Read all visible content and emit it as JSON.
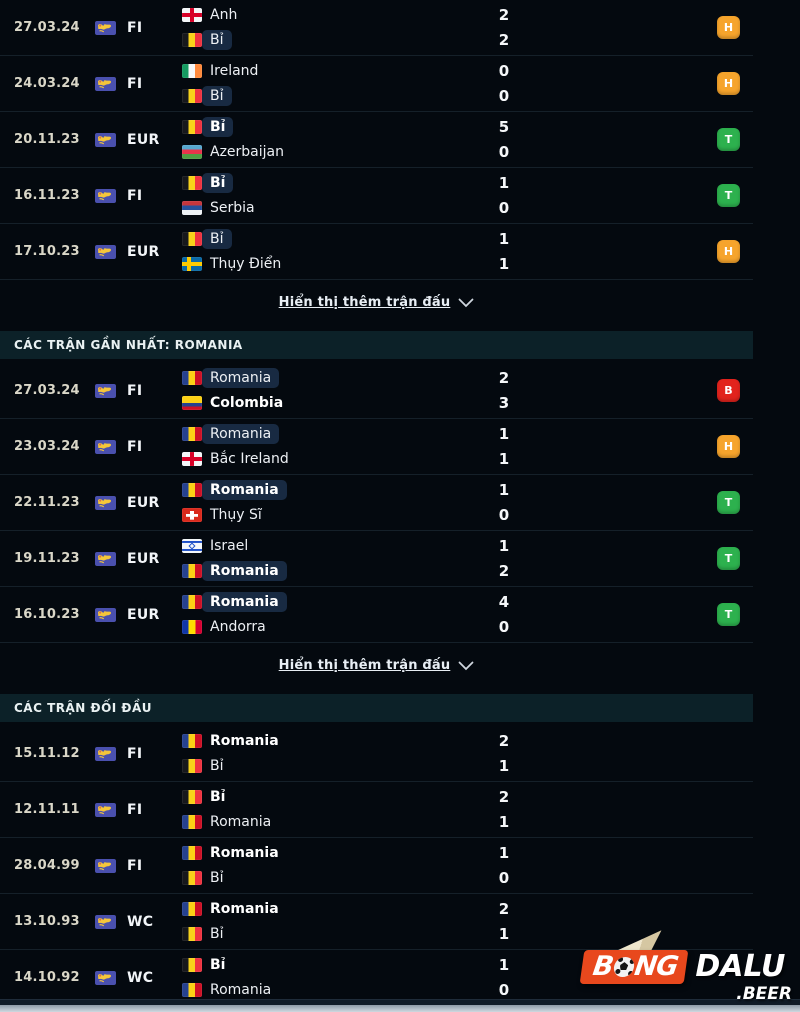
{
  "colors": {
    "background": "#04090f",
    "section_header_bg": "#0c2128",
    "team_chip_bg": "#182a42",
    "badge_win": "#2db14e",
    "badge_draw": "#f6a42c",
    "badge_loss": "#e2231d",
    "date_text": "#dad7c8",
    "logo_orange": "#e8481d"
  },
  "result_letters": {
    "win": "T",
    "draw": "H",
    "loss": "B"
  },
  "show_more_label": "Hiển thị thêm trận đấu",
  "sections": [
    {
      "id": "belgium-recent",
      "header": null,
      "show_more": true,
      "matches": [
        {
          "date": "27.03.24",
          "league": "FI",
          "home": {
            "name": "Anh",
            "flag": "england",
            "chip": false,
            "bold": false
          },
          "away": {
            "name": "Bỉ",
            "flag": "belgium",
            "chip": true,
            "bold": false
          },
          "score": [
            "2",
            "2"
          ],
          "result": "H"
        },
        {
          "date": "24.03.24",
          "league": "FI",
          "home": {
            "name": "Ireland",
            "flag": "ireland",
            "chip": false,
            "bold": false
          },
          "away": {
            "name": "Bỉ",
            "flag": "belgium",
            "chip": true,
            "bold": false
          },
          "score": [
            "0",
            "0"
          ],
          "result": "H"
        },
        {
          "date": "20.11.23",
          "league": "EUR",
          "home": {
            "name": "Bỉ",
            "flag": "belgium",
            "chip": true,
            "bold": true
          },
          "away": {
            "name": "Azerbaijan",
            "flag": "azerbaijan",
            "chip": false,
            "bold": false
          },
          "score": [
            "5",
            "0"
          ],
          "result": "T"
        },
        {
          "date": "16.11.23",
          "league": "FI",
          "home": {
            "name": "Bỉ",
            "flag": "belgium",
            "chip": true,
            "bold": true
          },
          "away": {
            "name": "Serbia",
            "flag": "serbia",
            "chip": false,
            "bold": false
          },
          "score": [
            "1",
            "0"
          ],
          "result": "T"
        },
        {
          "date": "17.10.23",
          "league": "EUR",
          "home": {
            "name": "Bỉ",
            "flag": "belgium",
            "chip": true,
            "bold": false
          },
          "away": {
            "name": "Thụy Điển",
            "flag": "sweden",
            "chip": false,
            "bold": false
          },
          "score": [
            "1",
            "1"
          ],
          "result": "H"
        }
      ]
    },
    {
      "id": "romania-recent",
      "header": "CÁC TRẬN GẦN NHẤT: ROMANIA",
      "show_more": true,
      "matches": [
        {
          "date": "27.03.24",
          "league": "FI",
          "home": {
            "name": "Romania",
            "flag": "romania",
            "chip": true,
            "bold": false
          },
          "away": {
            "name": "Colombia",
            "flag": "colombia",
            "chip": false,
            "bold": true
          },
          "score": [
            "2",
            "3"
          ],
          "result": "B"
        },
        {
          "date": "23.03.24",
          "league": "FI",
          "home": {
            "name": "Romania",
            "flag": "romania",
            "chip": true,
            "bold": false
          },
          "away": {
            "name": "Bắc Ireland",
            "flag": "northern-ireland",
            "chip": false,
            "bold": false
          },
          "score": [
            "1",
            "1"
          ],
          "result": "H"
        },
        {
          "date": "22.11.23",
          "league": "EUR",
          "home": {
            "name": "Romania",
            "flag": "romania",
            "chip": true,
            "bold": true
          },
          "away": {
            "name": "Thụy Sĩ",
            "flag": "switzerland",
            "chip": false,
            "bold": false
          },
          "score": [
            "1",
            "0"
          ],
          "result": "T"
        },
        {
          "date": "19.11.23",
          "league": "EUR",
          "home": {
            "name": "Israel",
            "flag": "israel",
            "chip": false,
            "bold": false
          },
          "away": {
            "name": "Romania",
            "flag": "romania",
            "chip": true,
            "bold": true
          },
          "score": [
            "1",
            "2"
          ],
          "result": "T"
        },
        {
          "date": "16.10.23",
          "league": "EUR",
          "home": {
            "name": "Romania",
            "flag": "romania",
            "chip": true,
            "bold": true
          },
          "away": {
            "name": "Andorra",
            "flag": "andorra",
            "chip": false,
            "bold": false
          },
          "score": [
            "4",
            "0"
          ],
          "result": "T"
        }
      ]
    },
    {
      "id": "head-to-head",
      "header": "CÁC TRẬN ĐỐI ĐẦU",
      "show_more": false,
      "matches": [
        {
          "date": "15.11.12",
          "league": "FI",
          "home": {
            "name": "Romania",
            "flag": "romania",
            "chip": false,
            "bold": true
          },
          "away": {
            "name": "Bỉ",
            "flag": "belgium",
            "chip": false,
            "bold": false
          },
          "score": [
            "2",
            "1"
          ],
          "result": null
        },
        {
          "date": "12.11.11",
          "league": "FI",
          "home": {
            "name": "Bỉ",
            "flag": "belgium",
            "chip": false,
            "bold": true
          },
          "away": {
            "name": "Romania",
            "flag": "romania",
            "chip": false,
            "bold": false
          },
          "score": [
            "2",
            "1"
          ],
          "result": null
        },
        {
          "date": "28.04.99",
          "league": "FI",
          "home": {
            "name": "Romania",
            "flag": "romania",
            "chip": false,
            "bold": true
          },
          "away": {
            "name": "Bỉ",
            "flag": "belgium",
            "chip": false,
            "bold": false
          },
          "score": [
            "1",
            "0"
          ],
          "result": null
        },
        {
          "date": "13.10.93",
          "league": "WC",
          "home": {
            "name": "Romania",
            "flag": "romania",
            "chip": false,
            "bold": true
          },
          "away": {
            "name": "Bỉ",
            "flag": "belgium",
            "chip": false,
            "bold": false
          },
          "score": [
            "2",
            "1"
          ],
          "result": null
        },
        {
          "date": "14.10.92",
          "league": "WC",
          "home": {
            "name": "Bỉ",
            "flag": "belgium",
            "chip": false,
            "bold": true
          },
          "away": {
            "name": "Romania",
            "flag": "romania",
            "chip": false,
            "bold": false
          },
          "score": [
            "1",
            "0"
          ],
          "result": null
        }
      ]
    }
  ],
  "logo": {
    "b": "B",
    "ng": "NG",
    "dalu": "DALU",
    "beer": ".BEER"
  }
}
